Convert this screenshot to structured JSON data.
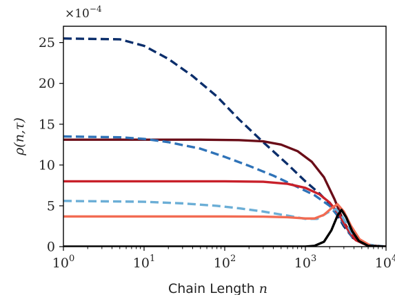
{
  "chart_data": {
    "type": "line",
    "title": "",
    "xlabel": "Chain Length",
    "xlabel_var": "n",
    "ylabel": "ρ(n,τ)",
    "y_scale_label": "×10",
    "y_scale_exp": "−4",
    "x_scale": "log",
    "xlim": [
      1,
      10000
    ],
    "ylim": [
      0,
      27
    ],
    "grid": false,
    "legend": "none",
    "x_ticks": [
      {
        "value": 1,
        "base": "10",
        "exp": "0"
      },
      {
        "value": 10,
        "base": "10",
        "exp": "1"
      },
      {
        "value": 100,
        "base": "10",
        "exp": "2"
      },
      {
        "value": 1000,
        "base": "10",
        "exp": "3"
      },
      {
        "value": 10000,
        "base": "10",
        "exp": "4"
      }
    ],
    "y_ticks": [
      {
        "value": 0,
        "label": "0"
      },
      {
        "value": 5,
        "label": "5"
      },
      {
        "value": 10,
        "label": "10"
      },
      {
        "value": 15,
        "label": "15"
      },
      {
        "value": 20,
        "label": "20"
      },
      {
        "value": 25,
        "label": "25"
      }
    ],
    "series": [
      {
        "color": "#0b2e6b",
        "dash": true,
        "points": [
          [
            1,
            25.5
          ],
          [
            5,
            25.4
          ],
          [
            10,
            24.6
          ],
          [
            20,
            23.0
          ],
          [
            40,
            20.9
          ],
          [
            80,
            18.4
          ],
          [
            150,
            15.6
          ],
          [
            300,
            12.8
          ],
          [
            600,
            10.1
          ],
          [
            1000,
            8.0
          ],
          [
            1500,
            6.5
          ],
          [
            2200,
            4.8
          ],
          [
            3000,
            2.5
          ],
          [
            4000,
            0.9
          ],
          [
            6000,
            0.15
          ],
          [
            10000,
            0
          ]
        ]
      },
      {
        "color": "#6a0d18",
        "dash": false,
        "points": [
          [
            1,
            13.1
          ],
          [
            50,
            13.1
          ],
          [
            150,
            13.05
          ],
          [
            300,
            12.9
          ],
          [
            500,
            12.5
          ],
          [
            800,
            11.7
          ],
          [
            1200,
            10.4
          ],
          [
            1700,
            8.5
          ],
          [
            2300,
            5.8
          ],
          [
            3000,
            3.0
          ],
          [
            4000,
            1.0
          ],
          [
            6000,
            0.15
          ],
          [
            10000,
            0
          ]
        ]
      },
      {
        "color": "#2f73b8",
        "dash": true,
        "points": [
          [
            1,
            13.5
          ],
          [
            5,
            13.4
          ],
          [
            10,
            13.2
          ],
          [
            20,
            12.8
          ],
          [
            50,
            12.0
          ],
          [
            100,
            11.0
          ],
          [
            200,
            9.9
          ],
          [
            400,
            8.7
          ],
          [
            800,
            7.3
          ],
          [
            1300,
            6.3
          ],
          [
            2000,
            5.0
          ],
          [
            2800,
            3.2
          ],
          [
            3800,
            1.2
          ],
          [
            5500,
            0.2
          ],
          [
            10000,
            0
          ]
        ]
      },
      {
        "color": "#c8202a",
        "dash": false,
        "points": [
          [
            1,
            8.0
          ],
          [
            100,
            8.0
          ],
          [
            300,
            7.95
          ],
          [
            600,
            7.7
          ],
          [
            1000,
            7.2
          ],
          [
            1500,
            6.4
          ],
          [
            2000,
            5.4
          ],
          [
            2600,
            4.0
          ],
          [
            3300,
            2.2
          ],
          [
            4200,
            0.8
          ],
          [
            6000,
            0.1
          ],
          [
            10000,
            0
          ]
        ]
      },
      {
        "color": "#6baed6",
        "dash": true,
        "points": [
          [
            1,
            5.6
          ],
          [
            10,
            5.5
          ],
          [
            30,
            5.3
          ],
          [
            80,
            5.0
          ],
          [
            150,
            4.7
          ],
          [
            300,
            4.3
          ],
          [
            600,
            3.8
          ],
          [
            1000,
            3.4
          ],
          [
            1400,
            3.4
          ],
          [
            1900,
            4.2
          ],
          [
            2400,
            4.6
          ],
          [
            2900,
            3.6
          ],
          [
            3800,
            1.6
          ],
          [
            5500,
            0.3
          ],
          [
            10000,
            0
          ]
        ]
      },
      {
        "color": "#f26b52",
        "dash": false,
        "points": [
          [
            1,
            3.7
          ],
          [
            100,
            3.7
          ],
          [
            300,
            3.68
          ],
          [
            600,
            3.6
          ],
          [
            1000,
            3.45
          ],
          [
            1300,
            3.45
          ],
          [
            1700,
            3.9
          ],
          [
            2100,
            4.7
          ],
          [
            2500,
            5.2
          ],
          [
            3000,
            4.3
          ],
          [
            3700,
            2.5
          ],
          [
            4700,
            0.9
          ],
          [
            6500,
            0.1
          ],
          [
            10000,
            0
          ]
        ]
      },
      {
        "color": "#000000",
        "dash": false,
        "points": [
          [
            1,
            0
          ],
          [
            1000,
            0
          ],
          [
            1300,
            0.1
          ],
          [
            1700,
            0.6
          ],
          [
            2100,
            2.0
          ],
          [
            2500,
            3.8
          ],
          [
            2800,
            4.5
          ],
          [
            3200,
            3.6
          ],
          [
            3800,
            1.9
          ],
          [
            4600,
            0.7
          ],
          [
            6000,
            0.1
          ],
          [
            10000,
            0
          ]
        ]
      }
    ]
  }
}
